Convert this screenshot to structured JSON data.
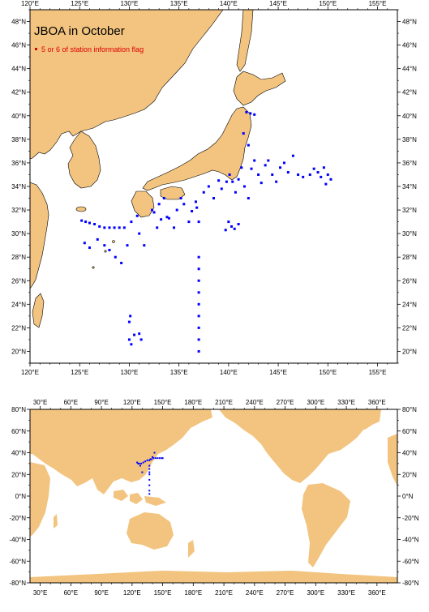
{
  "map_top": {
    "title": "JBOA in October",
    "legend_label": "5 or 6 of station information flag",
    "legend_color": "#e00000",
    "station_color": "#0000ff",
    "land_color": "#f2c47f",
    "lon_labels": [
      "120°E",
      "125°E",
      "130°E",
      "135°E",
      "140°E",
      "145°E",
      "150°E",
      "155°E"
    ],
    "lat_labels": [
      "20°N",
      "22°N",
      "24°N",
      "26°N",
      "28°N",
      "30°N",
      "32°N",
      "34°N",
      "36°N",
      "38°N",
      "40°N",
      "42°N",
      "44°N",
      "46°N",
      "48°N"
    ]
  },
  "map_bottom": {
    "lon_labels": [
      "30°E",
      "60°E",
      "90°E",
      "120°E",
      "150°E",
      "180°E",
      "210°E",
      "240°E",
      "270°E",
      "300°E",
      "330°E",
      "360°E"
    ],
    "lat_labels": [
      "80°N",
      "60°N",
      "40°N",
      "20°N",
      "0°N",
      "-20°N",
      "-40°N",
      "-60°N",
      "-80°N"
    ]
  },
  "stations": [
    [
      125.2,
      31.1
    ],
    [
      125.6,
      31.0
    ],
    [
      126.0,
      30.9
    ],
    [
      126.5,
      30.8
    ],
    [
      127.0,
      30.6
    ],
    [
      127.5,
      30.5
    ],
    [
      128.0,
      30.5
    ],
    [
      128.5,
      30.5
    ],
    [
      129.0,
      30.5
    ],
    [
      129.5,
      30.5
    ],
    [
      125.5,
      29.2
    ],
    [
      126.0,
      28.8
    ],
    [
      126.8,
      29.5
    ],
    [
      127.5,
      29.0
    ],
    [
      128.0,
      28.6
    ],
    [
      128.6,
      28.0
    ],
    [
      129.2,
      27.5
    ],
    [
      129.8,
      29.0
    ],
    [
      130.2,
      31.0
    ],
    [
      130.8,
      31.5
    ],
    [
      131.0,
      30.0
    ],
    [
      131.5,
      29.0
    ],
    [
      132.3,
      32.0
    ],
    [
      132.5,
      31.8
    ],
    [
      133.0,
      32.5
    ],
    [
      133.5,
      33.0
    ],
    [
      133.8,
      31.4
    ],
    [
      134.0,
      31.3
    ],
    [
      134.5,
      30.5
    ],
    [
      134.8,
      32.0
    ],
    [
      135.2,
      33.0
    ],
    [
      135.5,
      32.5
    ],
    [
      136.0,
      31.0
    ],
    [
      136.3,
      31.9
    ],
    [
      136.7,
      32.7
    ],
    [
      137.0,
      31.0
    ],
    [
      137.0,
      28.0
    ],
    [
      137.0,
      27.0
    ],
    [
      137.0,
      26.0
    ],
    [
      137.0,
      25.0
    ],
    [
      137.0,
      24.0
    ],
    [
      137.0,
      23.0
    ],
    [
      137.0,
      22.0
    ],
    [
      137.0,
      21.0
    ],
    [
      137.0,
      20.0
    ],
    [
      137.5,
      33.5
    ],
    [
      138.0,
      34.0
    ],
    [
      138.5,
      33.0
    ],
    [
      139.0,
      34.5
    ],
    [
      139.3,
      33.8
    ],
    [
      139.8,
      34.4
    ],
    [
      140.1,
      35.0
    ],
    [
      140.4,
      34.4
    ],
    [
      140.7,
      33.5
    ],
    [
      141.0,
      34.6
    ],
    [
      141.3,
      35.6
    ],
    [
      141.6,
      34.0
    ],
    [
      142.0,
      33.0
    ],
    [
      142.3,
      35.5
    ],
    [
      142.6,
      36.2
    ],
    [
      143.0,
      35.0
    ],
    [
      143.3,
      34.3
    ],
    [
      143.7,
      35.8
    ],
    [
      144.0,
      36.2
    ],
    [
      144.4,
      35.0
    ],
    [
      144.8,
      34.4
    ],
    [
      145.2,
      35.6
    ],
    [
      145.6,
      36.0
    ],
    [
      146.0,
      35.2
    ],
    [
      146.5,
      36.6
    ],
    [
      147.0,
      35.0
    ],
    [
      147.5,
      34.8
    ],
    [
      148.2,
      35.0
    ],
    [
      148.6,
      35.5
    ],
    [
      149.0,
      35.2
    ],
    [
      149.3,
      34.8
    ],
    [
      149.6,
      35.6
    ],
    [
      150.0,
      35.0
    ],
    [
      150.3,
      34.6
    ],
    [
      149.8,
      34.2
    ],
    [
      140.0,
      31.0
    ],
    [
      140.3,
      30.6
    ],
    [
      140.6,
      30.4
    ],
    [
      141.0,
      30.8
    ],
    [
      139.7,
      30.3
    ],
    [
      141.8,
      40.3
    ],
    [
      142.2,
      40.2
    ],
    [
      142.6,
      40.1
    ],
    [
      141.5,
      38.5
    ],
    [
      142.0,
      37.5
    ],
    [
      130.0,
      21.0
    ],
    [
      130.2,
      20.6
    ],
    [
      130.5,
      21.4
    ],
    [
      130.0,
      22.5
    ],
    [
      130.1,
      23.0
    ],
    [
      131.0,
      21.5
    ],
    [
      131.2,
      21.0
    ],
    [
      133.2,
      31.2
    ],
    [
      132.8,
      30.5
    ],
    [
      136.8,
      32.2
    ]
  ],
  "world_stations": [
    [
      125,
      31
    ],
    [
      127,
      30
    ],
    [
      129,
      30
    ],
    [
      131,
      31
    ],
    [
      133,
      32
    ],
    [
      135,
      33
    ],
    [
      137,
      33
    ],
    [
      139,
      34
    ],
    [
      141,
      35
    ],
    [
      143,
      35
    ],
    [
      145,
      35
    ],
    [
      147,
      35
    ],
    [
      149,
      35
    ],
    [
      150,
      35
    ],
    [
      137,
      28
    ],
    [
      137,
      25
    ],
    [
      137,
      22
    ],
    [
      137,
      20
    ],
    [
      137,
      15
    ],
    [
      137,
      10
    ],
    [
      137,
      5
    ],
    [
      137,
      2
    ],
    [
      130,
      22
    ],
    [
      128,
      28
    ],
    [
      126,
      30
    ],
    [
      142,
      40
    ],
    [
      140,
      36
    ],
    [
      138,
      34
    ]
  ]
}
